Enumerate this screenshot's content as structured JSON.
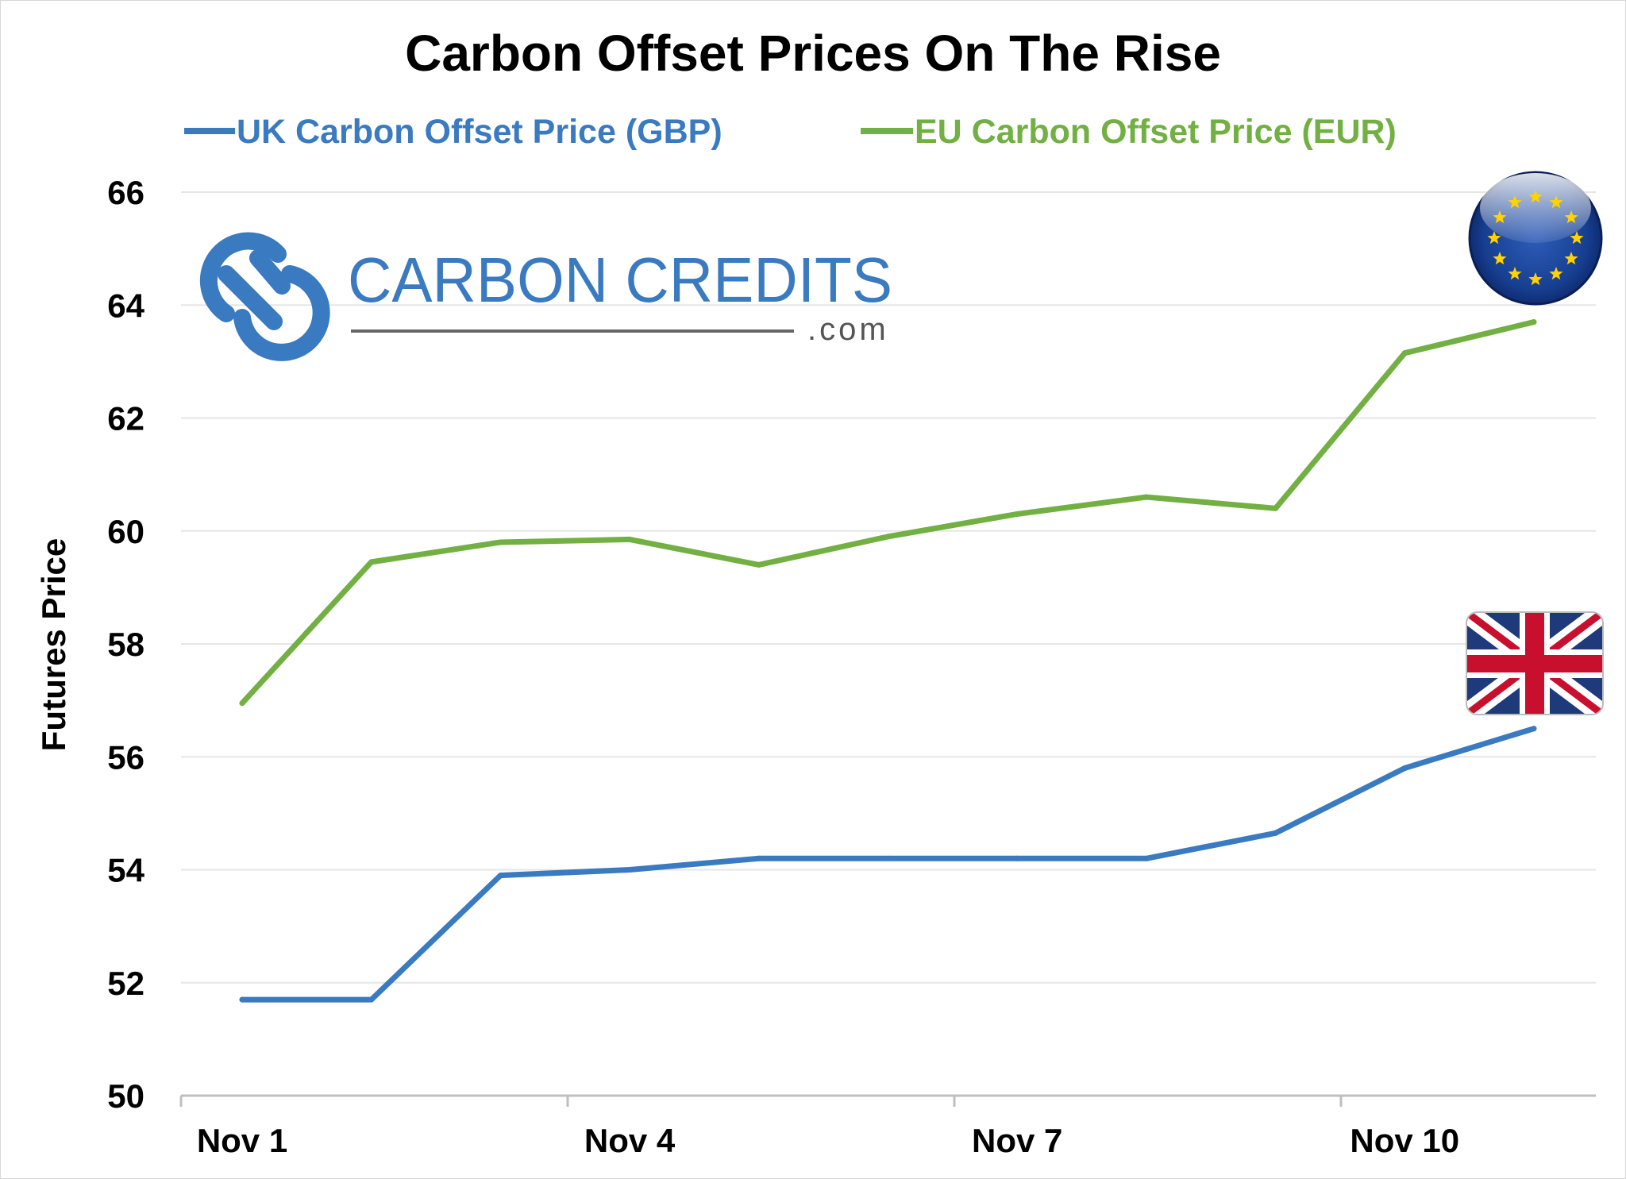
{
  "chart_data": {
    "type": "line",
    "title": "Carbon Offset Prices On The Rise",
    "ylabel": "Futures Price",
    "xlabel": "",
    "x": [
      "Nov 1",
      "Nov 2",
      "Nov 3",
      "Nov 4",
      "Nov 5",
      "Nov 6",
      "Nov 7",
      "Nov 8",
      "Nov 9",
      "Nov 10",
      "Nov 11"
    ],
    "x_tick_labels": [
      "Nov 1",
      "Nov 4",
      "Nov 7",
      "Nov 10"
    ],
    "y_ticks": [
      50,
      52,
      54,
      56,
      58,
      60,
      62,
      64,
      66
    ],
    "ylim": [
      50,
      66
    ],
    "grid": "horizontal",
    "legend_position": "top",
    "series": [
      {
        "name": "UK Carbon Offset Price (GBP)",
        "color": "#3a7ac0",
        "values": [
          51.7,
          51.7,
          53.9,
          54.0,
          54.2,
          54.2,
          54.2,
          54.2,
          54.65,
          55.8,
          56.5
        ]
      },
      {
        "name": "EU Carbon Offset Price (EUR)",
        "color": "#72b043",
        "values": [
          56.95,
          59.45,
          59.8,
          59.85,
          59.4,
          59.9,
          60.3,
          60.6,
          60.4,
          63.15,
          63.7
        ]
      }
    ]
  },
  "logo": {
    "name": "CARBON CREDITS",
    "suffix": ".com",
    "color": "#3a7ac0"
  },
  "flags": {
    "eu": "eu-flag-icon",
    "uk": "uk-flag-icon"
  }
}
